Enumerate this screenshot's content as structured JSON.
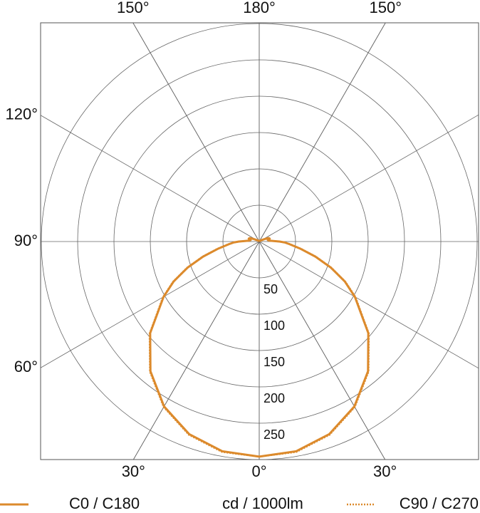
{
  "chart_data": {
    "type": "polar",
    "unit_label": "cd / 1000lm",
    "x": [
      0,
      10,
      20,
      30,
      40,
      50,
      60,
      65,
      70,
      75,
      80,
      85,
      88,
      90,
      95,
      100,
      105,
      110,
      115,
      120,
      130,
      150,
      180
    ],
    "series": [
      {
        "name": "C0 / C180",
        "color": "#dc8a2c",
        "line": "solid",
        "values": [
          296,
          293,
          282,
          262,
          233,
          196,
          152,
          130,
          105,
          80,
          58,
          42,
          35,
          28,
          14,
          12,
          15,
          14,
          8,
          4,
          2,
          1,
          0
        ]
      },
      {
        "name": "C90 / C270",
        "color": "#dc8a2c",
        "line": "dotted",
        "values": [
          296,
          294,
          283,
          263,
          234,
          197,
          153,
          131,
          106,
          81,
          59,
          43,
          35,
          28,
          14,
          12,
          15,
          14,
          8,
          4,
          2,
          1,
          0
        ]
      }
    ],
    "rlim": [
      0,
      300
    ],
    "rticks": [
      50,
      100,
      150,
      200,
      250
    ],
    "angle_ticks": [
      {
        "value": -150,
        "label": "150°"
      },
      {
        "value": 180,
        "label": "180°"
      },
      {
        "value": 150,
        "label": "150°"
      },
      {
        "value": -120,
        "label": "120°"
      },
      {
        "value": -90,
        "label": "90°"
      },
      {
        "value": -60,
        "label": "60°"
      },
      {
        "value": -30,
        "label": "30°"
      },
      {
        "value": 0,
        "label": "0°"
      },
      {
        "value": 30,
        "label": "30°"
      }
    ],
    "grid": true
  }
}
